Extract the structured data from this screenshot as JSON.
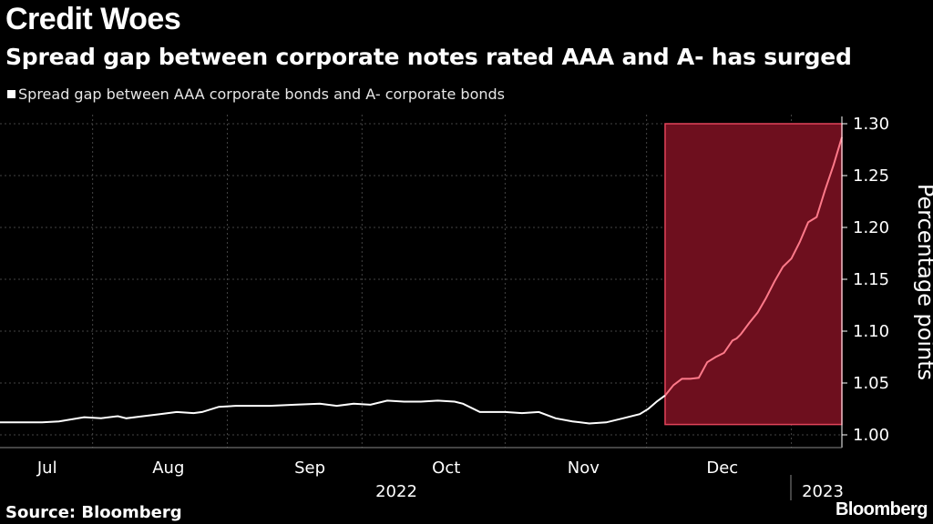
{
  "title": "Credit Woes",
  "subtitle": "Spread gap between corporate notes rated AAA and A- has surged",
  "legend_label": "Spread gap between AAA corporate bonds and A- corporate bonds",
  "source": "Source: Bloomberg",
  "brand": "Bloomberg",
  "colors": {
    "background": "#000000",
    "line": "#ffffff",
    "highlight_fill": "#6e0f1e",
    "highlight_line": "#ff7a8a",
    "highlight_border": "#e3445a"
  },
  "chart_data": {
    "type": "line",
    "title": "Credit Woes",
    "ylabel": "Percentage points",
    "xlabel": "",
    "ylim": [
      1.0,
      1.3
    ],
    "yticks": [
      "1.30",
      "1.25",
      "1.20",
      "1.15",
      "1.10",
      "1.05",
      "1.00"
    ],
    "x_months": [
      "Jul",
      "Aug",
      "Sep",
      "Oct",
      "Nov",
      "Dec"
    ],
    "x_year_labels": [
      "2022",
      "2023"
    ],
    "highlight": {
      "x_start": 0.79,
      "x_end": 1.0,
      "y_min": 1.01,
      "y_max": 1.3
    },
    "series": [
      {
        "name": "Spread gap between AAA corporate bonds and A- corporate bonds",
        "x": [
          0.0,
          0.05,
          0.07,
          0.1,
          0.12,
          0.14,
          0.15,
          0.17,
          0.19,
          0.21,
          0.23,
          0.24,
          0.26,
          0.28,
          0.3,
          0.32,
          0.35,
          0.38,
          0.4,
          0.42,
          0.44,
          0.46,
          0.48,
          0.5,
          0.52,
          0.54,
          0.55,
          0.57,
          0.6,
          0.62,
          0.64,
          0.66,
          0.68,
          0.7,
          0.72,
          0.74,
          0.76,
          0.77,
          0.78,
          0.79,
          0.8,
          0.81,
          0.82,
          0.83,
          0.84,
          0.85,
          0.86,
          0.87,
          0.875,
          0.88,
          0.89,
          0.9,
          0.91,
          0.92,
          0.93,
          0.94,
          0.95,
          0.96,
          0.97,
          0.98,
          0.99,
          1.0
        ],
        "y": [
          1.012,
          1.012,
          1.013,
          1.017,
          1.016,
          1.018,
          1.016,
          1.018,
          1.02,
          1.022,
          1.021,
          1.022,
          1.027,
          1.028,
          1.028,
          1.028,
          1.029,
          1.03,
          1.028,
          1.03,
          1.029,
          1.033,
          1.032,
          1.032,
          1.033,
          1.032,
          1.03,
          1.022,
          1.022,
          1.021,
          1.022,
          1.016,
          1.013,
          1.011,
          1.012,
          1.016,
          1.02,
          1.025,
          1.032,
          1.038,
          1.048,
          1.054,
          1.054,
          1.055,
          1.07,
          1.075,
          1.079,
          1.091,
          1.093,
          1.097,
          1.108,
          1.118,
          1.132,
          1.148,
          1.162,
          1.17,
          1.186,
          1.205,
          1.21,
          1.236,
          1.26,
          1.287
        ]
      }
    ]
  }
}
